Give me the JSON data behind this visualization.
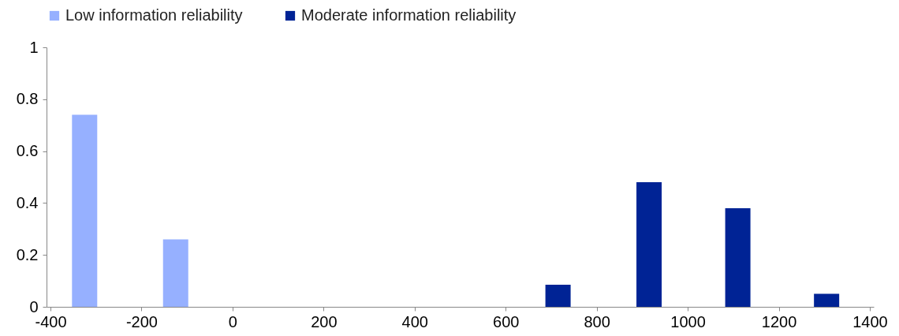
{
  "chart_data": {
    "type": "bar",
    "legend": "top",
    "grid": false,
    "xlim": [
      -400,
      1400
    ],
    "xticks": [
      -400,
      -200,
      0,
      200,
      400,
      600,
      800,
      1000,
      1200,
      1400
    ],
    "ylim": [
      0,
      1
    ],
    "yticks": [
      0,
      0.2,
      0.4,
      0.6,
      0.8,
      1
    ],
    "series": [
      {
        "name": "Low information reliability",
        "color": "#96b0ff",
        "x": [
          -325,
          -125
        ],
        "values": [
          0.74,
          0.26
        ]
      },
      {
        "name": "Moderate information reliability",
        "color": "#002395",
        "x": [
          715,
          915,
          1110,
          1305
        ],
        "values": [
          0.085,
          0.48,
          0.38,
          0.05
        ]
      }
    ]
  }
}
